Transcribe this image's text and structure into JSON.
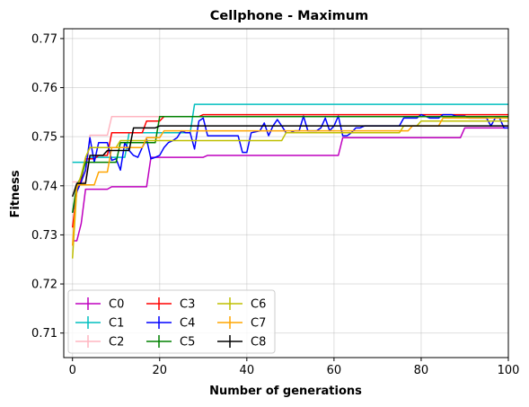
{
  "chart_data": {
    "type": "line",
    "title": "Cellphone - Maximum",
    "xlabel": "Number of generations",
    "ylabel": "Fitness",
    "xlim": [
      -2,
      100
    ],
    "ylim": [
      0.705,
      0.772
    ],
    "xticks": [
      0,
      20,
      40,
      60,
      80,
      100
    ],
    "xtick_labels": [
      "0",
      "20",
      "40",
      "60",
      "80",
      "100"
    ],
    "yticks": [
      0.71,
      0.72,
      0.73,
      0.74,
      0.75,
      0.76,
      0.77
    ],
    "ytick_labels": [
      "0.71",
      "0.72",
      "0.73",
      "0.74",
      "0.75",
      "0.76",
      "0.77"
    ],
    "grid": true,
    "legend": {
      "placement": "lower-left",
      "columns": 3
    },
    "series": [
      {
        "name": "C0",
        "color": "#bf00bf",
        "points": [
          [
            0,
            0.7288
          ],
          [
            1,
            0.7288
          ],
          [
            2,
            0.7323
          ],
          [
            3,
            0.7393
          ],
          [
            8,
            0.7393
          ],
          [
            9,
            0.7398
          ],
          [
            17,
            0.7398
          ],
          [
            18,
            0.7458
          ],
          [
            30,
            0.7458
          ],
          [
            31,
            0.7462
          ],
          [
            61,
            0.7462
          ],
          [
            62,
            0.7498
          ],
          [
            89,
            0.7498
          ],
          [
            90,
            0.7518
          ],
          [
            100,
            0.7518
          ]
        ]
      },
      {
        "name": "C1",
        "color": "#00bfbf",
        "points": [
          [
            0,
            0.7448
          ],
          [
            3,
            0.7448
          ],
          [
            4,
            0.7458
          ],
          [
            12,
            0.7458
          ],
          [
            13,
            0.7508
          ],
          [
            27,
            0.7508
          ],
          [
            28,
            0.7566
          ],
          [
            100,
            0.7566
          ]
        ]
      },
      {
        "name": "C2",
        "color": "#ffb6c1",
        "points": [
          [
            0,
            0.7408
          ],
          [
            3,
            0.7408
          ],
          [
            4,
            0.7503
          ],
          [
            8,
            0.7503
          ],
          [
            9,
            0.7541
          ],
          [
            100,
            0.7541
          ]
        ]
      },
      {
        "name": "C3",
        "color": "#ff0000",
        "points": [
          [
            0,
            0.7315
          ],
          [
            1,
            0.7388
          ],
          [
            2,
            0.7412
          ],
          [
            3,
            0.7455
          ],
          [
            5,
            0.7455
          ],
          [
            6,
            0.7462
          ],
          [
            8,
            0.7462
          ],
          [
            9,
            0.7508
          ],
          [
            16,
            0.7508
          ],
          [
            17,
            0.7532
          ],
          [
            20,
            0.7532
          ],
          [
            21,
            0.7541
          ],
          [
            29,
            0.7541
          ],
          [
            30,
            0.7545
          ],
          [
            100,
            0.7545
          ]
        ]
      },
      {
        "name": "C4",
        "color": "#0000ff",
        "points": [
          [
            0,
            0.7345
          ],
          [
            1,
            0.7388
          ],
          [
            2,
            0.7408
          ],
          [
            3,
            0.7432
          ],
          [
            4,
            0.7498
          ],
          [
            5,
            0.7448
          ],
          [
            6,
            0.7488
          ],
          [
            8,
            0.7488
          ],
          [
            9,
            0.7452
          ],
          [
            10,
            0.7455
          ],
          [
            11,
            0.7432
          ],
          [
            12,
            0.7488
          ],
          [
            13,
            0.7472
          ],
          [
            14,
            0.7462
          ],
          [
            15,
            0.7458
          ],
          [
            16,
            0.7478
          ],
          [
            17,
            0.7495
          ],
          [
            18,
            0.7455
          ],
          [
            19,
            0.7458
          ],
          [
            20,
            0.7462
          ],
          [
            21,
            0.7478
          ],
          [
            22,
            0.7488
          ],
          [
            23,
            0.7492
          ],
          [
            24,
            0.7498
          ],
          [
            25,
            0.7512
          ],
          [
            26,
            0.7508
          ],
          [
            27,
            0.7508
          ],
          [
            28,
            0.7475
          ],
          [
            29,
            0.7532
          ],
          [
            30,
            0.7538
          ],
          [
            31,
            0.7502
          ],
          [
            32,
            0.7502
          ],
          [
            37,
            0.7502
          ],
          [
            38,
            0.7502
          ],
          [
            39,
            0.7468
          ],
          [
            40,
            0.7468
          ],
          [
            41,
            0.7508
          ],
          [
            43,
            0.7512
          ],
          [
            44,
            0.7528
          ],
          [
            45,
            0.7502
          ],
          [
            46,
            0.7522
          ],
          [
            47,
            0.7535
          ],
          [
            48,
            0.7522
          ],
          [
            49,
            0.7508
          ],
          [
            50,
            0.7508
          ],
          [
            51,
            0.7512
          ],
          [
            52,
            0.7512
          ],
          [
            53,
            0.7542
          ],
          [
            54,
            0.7512
          ],
          [
            56,
            0.7512
          ],
          [
            57,
            0.7518
          ],
          [
            58,
            0.7538
          ],
          [
            59,
            0.7512
          ],
          [
            60,
            0.7522
          ],
          [
            61,
            0.7542
          ],
          [
            62,
            0.7502
          ],
          [
            63,
            0.7502
          ],
          [
            64,
            0.7508
          ],
          [
            65,
            0.7518
          ],
          [
            66,
            0.7518
          ],
          [
            67,
            0.7522
          ],
          [
            75,
            0.7522
          ],
          [
            76,
            0.7538
          ],
          [
            79,
            0.7538
          ],
          [
            80,
            0.7545
          ],
          [
            82,
            0.7538
          ],
          [
            84,
            0.7538
          ],
          [
            85,
            0.7545
          ],
          [
            87,
            0.7545
          ],
          [
            88,
            0.7542
          ],
          [
            90,
            0.7542
          ],
          [
            91,
            0.7538
          ],
          [
            95,
            0.7538
          ],
          [
            96,
            0.7522
          ],
          [
            97,
            0.7538
          ],
          [
            98,
            0.7538
          ],
          [
            99,
            0.7518
          ],
          [
            100,
            0.7518
          ]
        ]
      },
      {
        "name": "C5",
        "color": "#008000",
        "points": [
          [
            0,
            0.7345
          ],
          [
            1,
            0.7402
          ],
          [
            2,
            0.7418
          ],
          [
            3,
            0.7448
          ],
          [
            10,
            0.7448
          ],
          [
            11,
            0.7488
          ],
          [
            19,
            0.7488
          ],
          [
            20,
            0.7541
          ],
          [
            100,
            0.7541
          ]
        ]
      },
      {
        "name": "C6",
        "color": "#bfbf00",
        "points": [
          [
            0,
            0.7252
          ],
          [
            1,
            0.7395
          ],
          [
            2,
            0.7422
          ],
          [
            3,
            0.7458
          ],
          [
            4,
            0.7478
          ],
          [
            10,
            0.7478
          ],
          [
            11,
            0.7492
          ],
          [
            48,
            0.7492
          ],
          [
            49,
            0.7508
          ],
          [
            75,
            0.7508
          ],
          [
            76,
            0.7522
          ],
          [
            79,
            0.7522
          ],
          [
            80,
            0.7532
          ],
          [
            100,
            0.7532
          ]
        ]
      },
      {
        "name": "C7",
        "color": "#ffa500",
        "points": [
          [
            0,
            0.7278
          ],
          [
            1,
            0.7402
          ],
          [
            5,
            0.7402
          ],
          [
            6,
            0.7428
          ],
          [
            8,
            0.7428
          ],
          [
            9,
            0.7478
          ],
          [
            16,
            0.7478
          ],
          [
            17,
            0.7498
          ],
          [
            20,
            0.7498
          ],
          [
            21,
            0.7512
          ],
          [
            77,
            0.7512
          ],
          [
            78,
            0.7522
          ],
          [
            84,
            0.7522
          ],
          [
            85,
            0.7538
          ],
          [
            100,
            0.7538
          ]
        ]
      },
      {
        "name": "C8",
        "color": "#000000",
        "points": [
          [
            0,
            0.7378
          ],
          [
            1,
            0.7405
          ],
          [
            3,
            0.7405
          ],
          [
            4,
            0.7462
          ],
          [
            7,
            0.7462
          ],
          [
            8,
            0.7472
          ],
          [
            13,
            0.7472
          ],
          [
            14,
            0.7518
          ],
          [
            19,
            0.7518
          ],
          [
            20,
            0.7522
          ],
          [
            100,
            0.7522
          ]
        ]
      }
    ]
  }
}
